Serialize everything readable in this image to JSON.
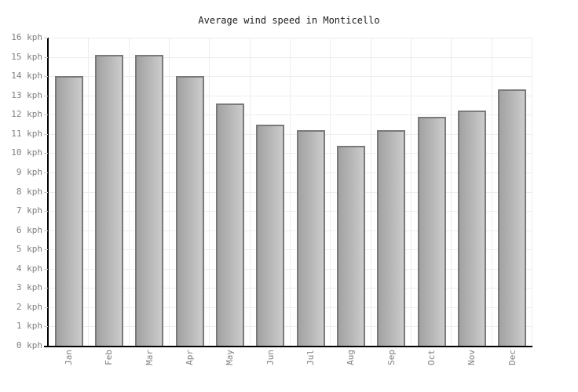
{
  "chart_data": {
    "type": "bar",
    "title": "Average wind speed in Monticello",
    "unit": "kph",
    "categories": [
      "Jan",
      "Feb",
      "Mar",
      "Apr",
      "May",
      "Jun",
      "Jul",
      "Aug",
      "Sep",
      "Oct",
      "Nov",
      "Dec"
    ],
    "values": [
      14.0,
      15.1,
      15.1,
      14.0,
      12.6,
      11.5,
      11.2,
      10.4,
      11.2,
      11.9,
      12.2,
      13.3
    ],
    "ylim": [
      0,
      16
    ],
    "ytick_step": 1,
    "ytick_labels": [
      "0 kph",
      "1 kph",
      "2 kph",
      "3 kph",
      "4 kph",
      "5 kph",
      "6 kph",
      "7 kph",
      "8 kph",
      "9 kph",
      "10 kph",
      "11 kph",
      "12 kph",
      "13 kph",
      "14 kph",
      "15 kph",
      "16 kph"
    ],
    "grid": true,
    "legend_position": "none",
    "colors": {
      "background": "#ffffff",
      "title_text": "#1a1a1a",
      "axis_line": "#000000",
      "gridline": "#ededed",
      "tick_dash": "#cccccc",
      "tick_label_text": "#7f7f7f",
      "bar_gradient_left": "#a2a2a2",
      "bar_gradient_right": "#cccccc",
      "bar_border": "#7a7a7a"
    }
  }
}
